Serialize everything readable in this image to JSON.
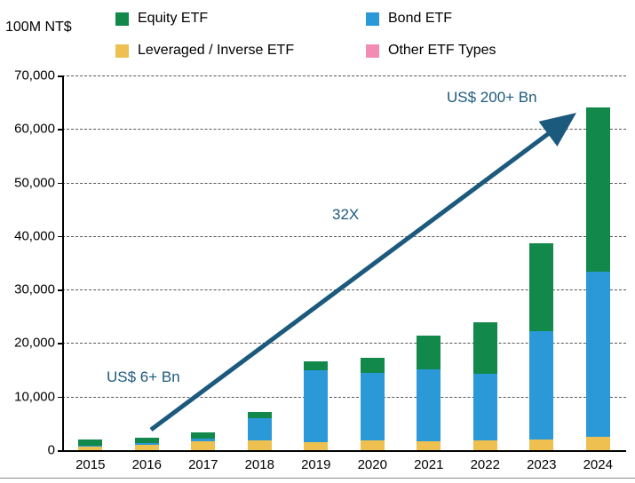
{
  "unit_label": "100M NT$",
  "legend": [
    {
      "label": "Equity ETF",
      "color": "#12884b"
    },
    {
      "label": "Bond ETF",
      "color": "#2b99d8"
    },
    {
      "label": "Leveraged / Inverse ETF",
      "color": "#edc04f"
    },
    {
      "label": "Other ETF Types",
      "color": "#f28cb4"
    }
  ],
  "annotations": {
    "start": "US$ 6+ Bn",
    "middle": "32X",
    "end": "US$ 200+ Bn",
    "color": "#1c5a7d"
  },
  "chart_data": {
    "type": "bar",
    "stacked": true,
    "title": "",
    "ylabel": "100M NT$",
    "xlabel": "",
    "ylim": [
      0,
      70000
    ],
    "ytick_step": 10000,
    "grid": "dashed-horizontal",
    "legend_position": "top",
    "categories": [
      "2015",
      "2016",
      "2017",
      "2018",
      "2019",
      "2020",
      "2021",
      "2022",
      "2023",
      "2024"
    ],
    "series": [
      {
        "name": "Leveraged / Inverse ETF",
        "color": "#edc04f",
        "values": [
          700,
          1000,
          1600,
          1800,
          1500,
          1800,
          1700,
          1800,
          2000,
          2500
        ]
      },
      {
        "name": "Bond ETF",
        "color": "#2b99d8",
        "values": [
          100,
          300,
          600,
          4200,
          13500,
          12600,
          13400,
          12400,
          20300,
          30800
        ]
      },
      {
        "name": "Equity ETF",
        "color": "#12884b",
        "values": [
          1200,
          1100,
          1100,
          1100,
          1600,
          2900,
          6300,
          9700,
          16400,
          30700
        ]
      },
      {
        "name": "Other ETF Types",
        "color": "#f28cb4",
        "values": [
          0,
          0,
          0,
          0,
          0,
          0,
          0,
          0,
          0,
          0
        ]
      }
    ],
    "annotations": [
      {
        "text": "US$ 6+ Bn",
        "near": "2015"
      },
      {
        "text": "32X",
        "near": "midpoint-of-arrow"
      },
      {
        "text": "US$ 200+ Bn",
        "near": "2024"
      }
    ]
  }
}
